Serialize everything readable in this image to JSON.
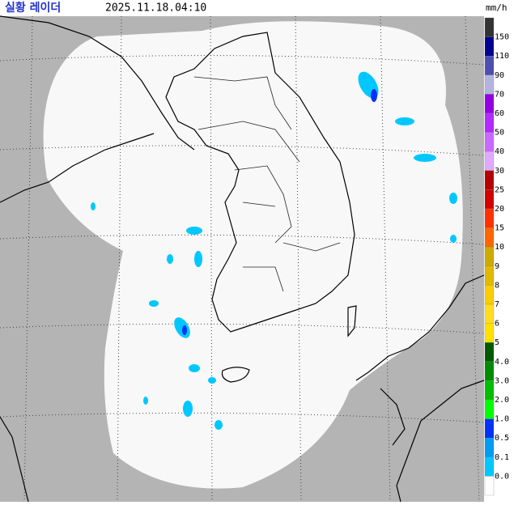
{
  "header": {
    "title": "실황 레이더",
    "time": "2025.11.18.04:10",
    "unit": "mm/h"
  },
  "legend": {
    "labels": [
      "150",
      "110",
      "90",
      "70",
      "60",
      "50",
      "40",
      "30",
      "25",
      "20",
      "15",
      "10",
      "9",
      "8",
      "7",
      "6",
      "5",
      "4.0",
      "3.0",
      "2.0",
      "1.0",
      "0.5",
      "0.1",
      "0.0"
    ],
    "colors": [
      "#333333",
      "#000390",
      "#4c4eb1",
      "#b3b4de",
      "#9300e4",
      "#b329ff",
      "#c969ff",
      "#dfa9ff",
      "#b40000",
      "#d20000",
      "#ff3200",
      "#ff6600",
      "#ccaa00",
      "#e0b900",
      "#f9cd00",
      "#ffdc1f",
      "#ffe100",
      "#005a00",
      "#008c00",
      "#00be00",
      "#00ff00",
      "#0033f5",
      "#009bf5",
      "#00c8ff",
      "#ffffff"
    ]
  }
}
